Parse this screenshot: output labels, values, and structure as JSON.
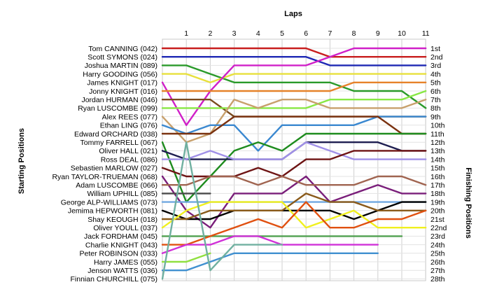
{
  "chart_data": {
    "type": "line",
    "chart_kind": "lap-position bump chart",
    "top_axis_label": "Laps",
    "left_axis_label": "Starting Positions",
    "right_axis_label": "Finishing Positions",
    "laps": [
      1,
      2,
      3,
      4,
      5,
      6,
      7,
      8,
      9,
      10,
      11
    ],
    "finish_labels": [
      "1st",
      "2nd",
      "3rd",
      "4th",
      "5th",
      "6th",
      "7th",
      "8th",
      "9th",
      "10th",
      "11th",
      "12th",
      "13th",
      "14th",
      "15th",
      "16th",
      "17th",
      "18th",
      "19th",
      "20th",
      "21st",
      "22nd",
      "23rd",
      "24th",
      "25th",
      "26th",
      "27th",
      "28th"
    ],
    "grid": true,
    "series": [
      {
        "name": "Tom CANNING (042)",
        "color": "#c81e1e",
        "positions": [
          1,
          1,
          1,
          1,
          1,
          1,
          1,
          2,
          2,
          2,
          2,
          2
        ]
      },
      {
        "name": "Scott SYMONS (024)",
        "color": "#1e28b4",
        "positions": [
          2,
          2,
          2,
          2,
          2,
          2,
          2,
          3,
          3,
          3,
          3,
          3
        ]
      },
      {
        "name": "Joshua MARTIN (089)",
        "color": "#2a9a2a",
        "positions": [
          3,
          3,
          4,
          5,
          5,
          5,
          5,
          5,
          6,
          6,
          6,
          8
        ]
      },
      {
        "name": "Harry GOODING (056)",
        "color": "#e8e03c",
        "positions": [
          4,
          4,
          5,
          4,
          4,
          4,
          4,
          4,
          4,
          4,
          4,
          4
        ]
      },
      {
        "name": "James KNIGHT (017)",
        "color": "#d020c8",
        "positions": [
          5,
          10,
          6,
          3,
          3,
          3,
          3,
          2,
          1,
          1,
          1,
          1
        ]
      },
      {
        "name": "Jonny KNIGHT (016)",
        "color": "#e6822a",
        "positions": [
          6,
          6,
          6,
          6,
          6,
          6,
          6,
          6,
          5,
          5,
          5,
          5
        ]
      },
      {
        "name": "Jordan HURMAN (046)",
        "color": "#7a4a1e",
        "positions": [
          7,
          7,
          7,
          9,
          9,
          9,
          9,
          9,
          9,
          9,
          9,
          9
        ]
      },
      {
        "name": "Ryan LUSCOMBE (099)",
        "color": "#88e844",
        "positions": [
          8,
          8,
          8,
          8,
          8,
          8,
          8,
          7,
          7,
          7,
          7,
          6
        ]
      },
      {
        "name": "Alex REES (077)",
        "color": "#c8a06c",
        "positions": [
          9,
          12,
          11,
          7,
          8,
          7,
          7,
          8,
          8,
          8,
          8,
          7
        ]
      },
      {
        "name": "Ethan LING (076)",
        "color": "#3a88d0",
        "positions": [
          10,
          11,
          10,
          10,
          13,
          10,
          10,
          10,
          10,
          9,
          9,
          9
        ]
      },
      {
        "name": "Edward ORCHARD (038)",
        "color": "#7a3210",
        "positions": [
          11,
          11,
          11,
          9,
          9,
          9,
          9,
          9,
          9,
          9,
          11,
          11
        ]
      },
      {
        "name": "Tommy FARRELL (067)",
        "color": "#1e8c1e",
        "positions": [
          12,
          19,
          16,
          13,
          12,
          13,
          11,
          11,
          11,
          11,
          11,
          11
        ]
      },
      {
        "name": "Oliver HALL (021)",
        "color": "#1e1e50",
        "positions": [
          13,
          14,
          14,
          14,
          14,
          14,
          12,
          12,
          12,
          12,
          13,
          13
        ]
      },
      {
        "name": "Ross DEAL (086)",
        "color": "#a090e8",
        "positions": [
          14,
          14,
          13,
          14,
          14,
          14,
          12,
          13,
          14,
          14,
          14,
          14
        ]
      },
      {
        "name": "Sebastien MARLOW (027)",
        "color": "#6e1414",
        "positions": [
          15,
          16,
          16,
          16,
          15,
          16,
          14,
          14,
          13,
          13,
          13,
          13
        ]
      },
      {
        "name": "Ryan TAYLOR-TRUEMAN (068)",
        "color": "#7a1e7a",
        "positions": [
          16,
          20,
          22,
          18,
          18,
          18,
          16,
          19,
          18,
          17,
          18,
          18
        ]
      },
      {
        "name": "Adam LUSCOMBE (066)",
        "color": "#a06450",
        "positions": [
          17,
          17,
          16,
          16,
          17,
          16,
          17,
          17,
          17,
          16,
          16,
          17
        ]
      },
      {
        "name": "William UPHILL (085)",
        "color": "#4a4a4a",
        "positions": [
          18,
          18,
          18,
          null,
          null,
          null,
          null,
          null,
          null,
          null,
          null,
          null
        ]
      },
      {
        "name": "George ALP-WILLIAMS (073)",
        "color": "#70a8e0",
        "positions": [
          19,
          19,
          19,
          19,
          19,
          19,
          19,
          19,
          19,
          19,
          19,
          19
        ]
      },
      {
        "name": "Jemima HEPWORTH (081)",
        "color": "#000000",
        "positions": [
          20,
          21,
          21,
          20,
          20,
          20,
          20,
          20,
          21,
          20,
          19,
          19
        ]
      },
      {
        "name": "Shay KEOUGH (018)",
        "color": "#8a5a1a",
        "positions": [
          21,
          21,
          20,
          20,
          20,
          20,
          18,
          19,
          19,
          20,
          20,
          20
        ]
      },
      {
        "name": "Oliver YOULL (037)",
        "color": "#f0f01e",
        "positions": [
          22,
          20,
          19,
          19,
          19,
          19,
          22,
          21,
          20,
          22,
          22,
          22
        ]
      },
      {
        "name": "Jack FORDHAM (045)",
        "color": "#50a050",
        "positions": [
          23,
          23,
          23,
          23,
          23,
          23,
          23,
          23,
          23,
          23,
          23,
          null
        ]
      },
      {
        "name": "Charlie KNIGHT (043)",
        "color": "#e05010",
        "positions": [
          24,
          24,
          23,
          22,
          21,
          22,
          19,
          22,
          22,
          21,
          21,
          20
        ]
      },
      {
        "name": "Peter ROBINSON (033)",
        "color": "#d030d8",
        "positions": [
          25,
          24,
          24,
          23,
          23,
          24,
          24,
          24,
          24,
          24,
          null,
          null
        ]
      },
      {
        "name": "Harry JAMES (055)",
        "color": "#90e040",
        "positions": [
          26,
          26,
          25,
          null,
          null,
          null,
          null,
          null,
          null,
          null,
          null,
          null
        ]
      },
      {
        "name": "Jenson WATTS (036)",
        "color": "#4090d0",
        "positions": [
          27,
          27,
          26,
          25,
          25,
          25,
          25,
          25,
          25,
          25,
          null,
          null
        ]
      },
      {
        "name": "Finnian CHURCHILL (075)",
        "color": "#70b0a0",
        "positions": [
          28,
          12,
          27,
          24,
          24,
          24,
          null,
          null,
          null,
          null,
          null,
          null
        ]
      }
    ]
  }
}
